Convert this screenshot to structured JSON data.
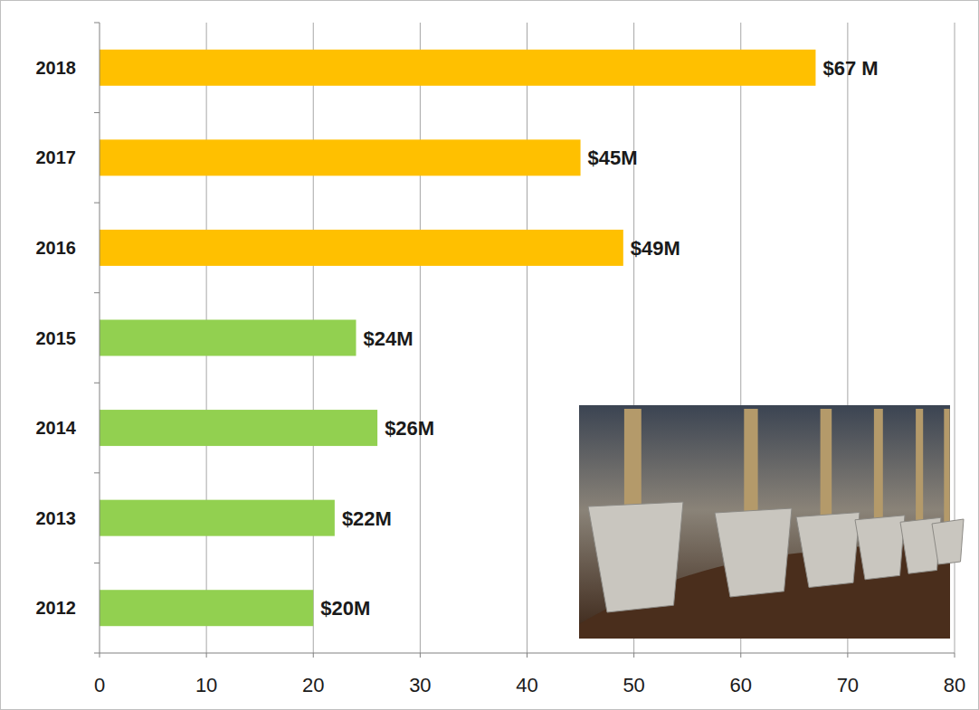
{
  "chart_data": {
    "type": "bar",
    "orientation": "horizontal",
    "categories": [
      "2012",
      "2013",
      "2014",
      "2015",
      "2016",
      "2017",
      "2018"
    ],
    "values": [
      20,
      22,
      26,
      24,
      49,
      45,
      67
    ],
    "value_labels": [
      "$20M",
      "$22M",
      "$26M",
      "$24M",
      "$49M",
      "$45M",
      "$67 M"
    ],
    "colors": [
      "#92d050",
      "#92d050",
      "#92d050",
      "#92d050",
      "#ffc000",
      "#ffc000",
      "#ffc000"
    ],
    "xlim": [
      0,
      80
    ],
    "xticks": [
      0,
      10,
      20,
      30,
      40,
      50,
      60,
      70,
      80
    ],
    "grid": true,
    "data_labels": true
  }
}
